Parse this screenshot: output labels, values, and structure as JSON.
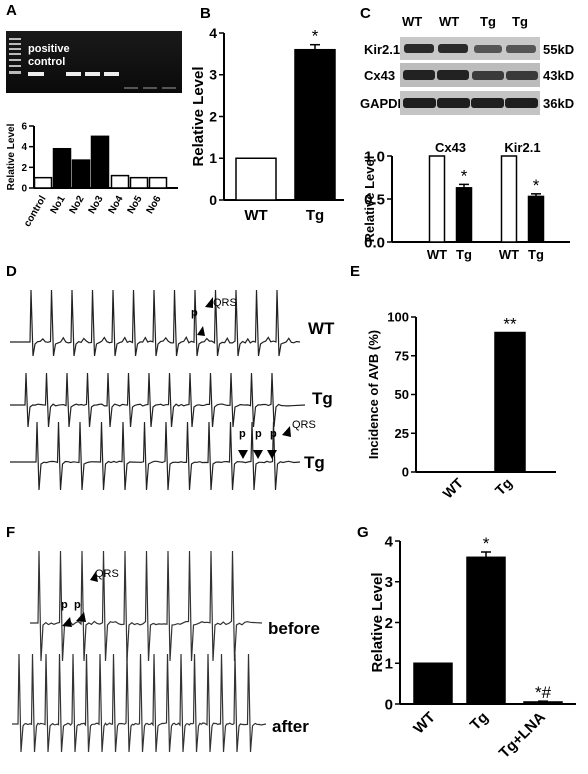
{
  "panels": {
    "A": {
      "letter": "A",
      "gel": {
        "label_line1": "positive",
        "label_line2": "control"
      },
      "chart_ref": 0
    },
    "B": {
      "letter": "B",
      "chart_ref": 1
    },
    "C": {
      "letter": "C",
      "blot": {
        "lanes": [
          "WT",
          "WT",
          "Tg",
          "Tg"
        ],
        "rows": [
          {
            "protein": "Kir2.1",
            "size": "55kD"
          },
          {
            "protein": "Cx43",
            "size": "43kD"
          },
          {
            "protein": "GAPDH",
            "size": "36kD"
          }
        ]
      },
      "chart_ref": 2
    },
    "D": {
      "letter": "D",
      "traces": [
        {
          "label": "WT",
          "annotations": [
            "p",
            "QRS"
          ]
        },
        {
          "label": "Tg",
          "annotations": []
        },
        {
          "label": "Tg",
          "annotations": [
            "p",
            "p",
            "p",
            "QRS"
          ]
        }
      ]
    },
    "E": {
      "letter": "E",
      "chart_ref": 3
    },
    "F": {
      "letter": "F",
      "traces": [
        {
          "label": "before",
          "annotations": [
            "p",
            "p",
            "QRS"
          ]
        },
        {
          "label": "after",
          "annotations": []
        }
      ]
    },
    "G": {
      "letter": "G",
      "chart_ref": 4
    }
  },
  "chart_data": [
    {
      "panel": "A",
      "type": "bar",
      "ylabel": "Relative Level",
      "categories": [
        "control",
        "No1",
        "No2",
        "No3",
        "No4",
        "No5",
        "No6"
      ],
      "values": [
        1.0,
        3.8,
        2.7,
        5.0,
        1.2,
        1.0,
        1.0
      ],
      "fills": [
        "white",
        "black",
        "black",
        "black",
        "white",
        "white",
        "white"
      ],
      "ylim": [
        0,
        6
      ],
      "yticks": [
        0,
        2,
        4,
        6
      ]
    },
    {
      "panel": "B",
      "type": "bar",
      "ylabel": "Relative Level",
      "categories": [
        "WT",
        "Tg"
      ],
      "values": [
        1.0,
        3.6
      ],
      "errors": [
        0,
        0.12
      ],
      "fills": [
        "white",
        "black"
      ],
      "significance": [
        "",
        "*"
      ],
      "ylim": [
        0,
        4
      ],
      "yticks": [
        0,
        1,
        2,
        3,
        4
      ]
    },
    {
      "panel": "C",
      "type": "bar",
      "ylabel": "Relative Level",
      "groups": [
        "Cx43",
        "Kir2.1"
      ],
      "categories": [
        "WT",
        "Tg",
        "WT",
        "Tg"
      ],
      "values": [
        1.0,
        0.63,
        1.0,
        0.53
      ],
      "errors": [
        0,
        0.04,
        0,
        0.03
      ],
      "fills": [
        "white",
        "black",
        "white",
        "black"
      ],
      "significance": [
        "",
        "*",
        "",
        "*"
      ],
      "ylim": [
        0,
        1
      ],
      "yticks": [
        0.0,
        0.5,
        1.0
      ]
    },
    {
      "panel": "E",
      "type": "bar",
      "ylabel": "Incidence of AVB (%)",
      "categories": [
        "WT",
        "Tg"
      ],
      "values": [
        0,
        90
      ],
      "fills": [
        "black",
        "black"
      ],
      "significance": [
        "",
        "**"
      ],
      "ylim": [
        0,
        100
      ],
      "yticks": [
        0,
        25,
        50,
        75,
        100
      ]
    },
    {
      "panel": "G",
      "type": "bar",
      "ylabel": "Relative Level",
      "categories": [
        "WT",
        "Tg",
        "Tg+LNA"
      ],
      "values": [
        1.0,
        3.6,
        0.05
      ],
      "errors": [
        0,
        0.13,
        0.02
      ],
      "fills": [
        "black",
        "black",
        "black"
      ],
      "significance": [
        "",
        "*",
        "*#"
      ],
      "ylim": [
        0,
        4
      ],
      "yticks": [
        0,
        1,
        2,
        3,
        4
      ]
    }
  ]
}
